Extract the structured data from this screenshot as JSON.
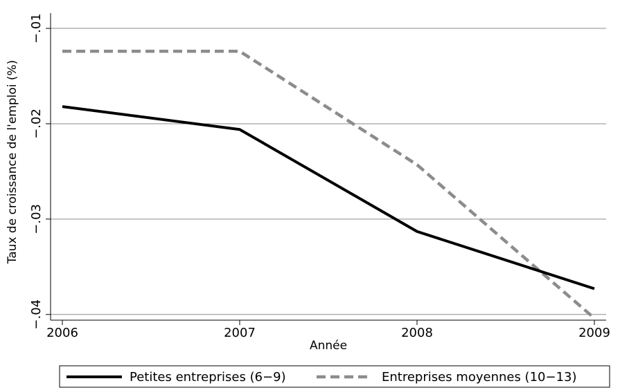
{
  "chart_data": {
    "type": "line",
    "xlabel": "Année",
    "ylabel": "Taux de croissance de l'emploi (%)",
    "x": [
      2006,
      2007,
      2008,
      2009
    ],
    "x_tick_labels": [
      "2006",
      "2007",
      "2008",
      "2009"
    ],
    "y_ticks": [
      -0.01,
      -0.02,
      -0.03,
      -0.04
    ],
    "y_tick_labels": [
      "−.01",
      "−.02",
      "−.03",
      "−.04"
    ],
    "ylim": [
      -0.0406,
      -0.0084
    ],
    "xlim": [
      2006,
      2009
    ],
    "grid": true,
    "legend_position": "bottom",
    "series": [
      {
        "name": "Petites entreprises (6−9)",
        "values": [
          -0.0182,
          -0.0206,
          -0.0313,
          -0.0373
        ],
        "color": "#000000",
        "style": "solid"
      },
      {
        "name": "Entreprises moyennes (10−13)",
        "values": [
          -0.0124,
          -0.0124,
          -0.0243,
          -0.0404
        ],
        "color": "#8c8c8c",
        "style": "dashed"
      }
    ]
  }
}
